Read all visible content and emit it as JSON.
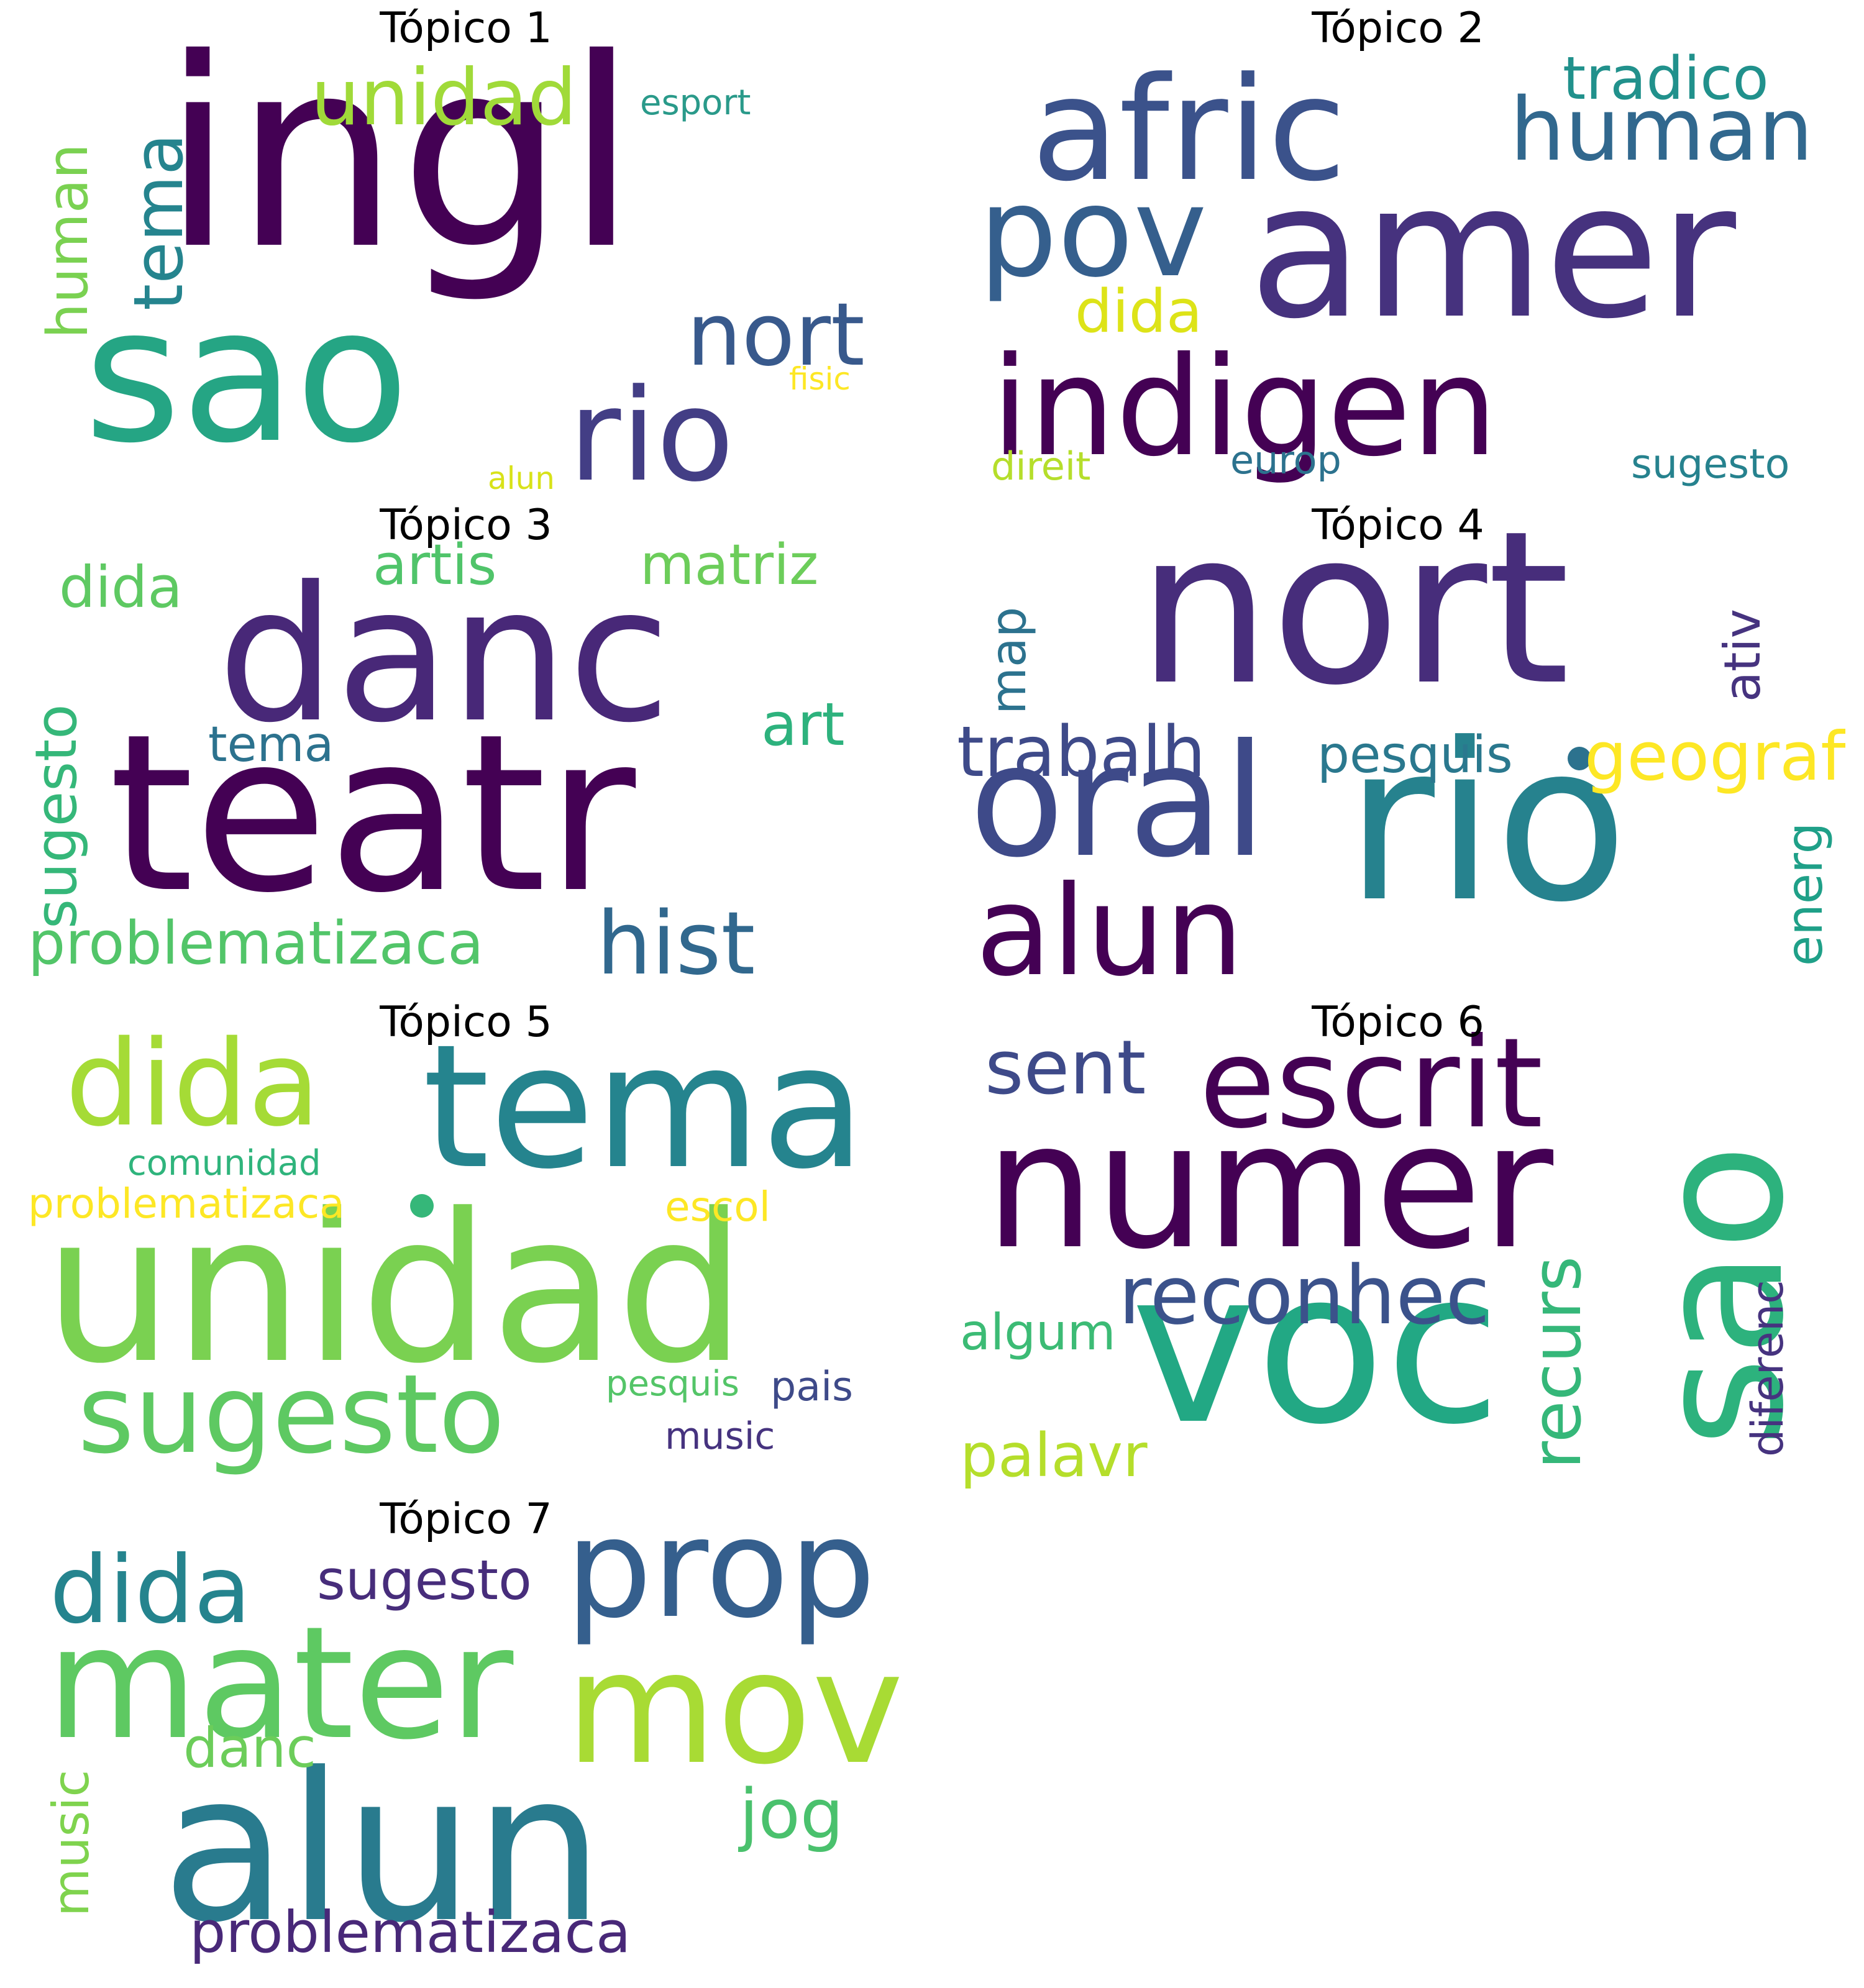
{
  "topics": [
    {
      "title": "Tópico 1",
      "words": {
        "ingl": "ingl",
        "sao": "sao",
        "rio": "rio",
        "nort": "nort",
        "unidad": "unidad",
        "tema": "tema",
        "human": "human",
        "esport": "esport",
        "fisic": "fisic",
        "alun": "alun"
      }
    },
    {
      "title": "Tópico 2",
      "words": {
        "afric": "afric",
        "amer": "amer",
        "pov": "pov",
        "indigen": "indigen",
        "human": "human",
        "tradico": "tradico",
        "dida": "dida",
        "direit": "direit",
        "europ": "europ",
        "sugesto": "sugesto"
      }
    },
    {
      "title": "Tópico 3",
      "words": {
        "teatr": "teatr",
        "danc": "danc",
        "hist": "hist",
        "problematizaca": "problematizaca",
        "sugesto": "sugesto",
        "dida": "dida",
        "artis": "artis",
        "matriz": "matriz",
        "art": "art",
        "tema": "tema"
      }
    },
    {
      "title": "Tópico 4",
      "words": {
        "nort": "nort",
        "rio": "rio",
        "oral": "oral",
        "alun": "alun",
        "trabalh": "trabalh",
        "pesquis": "pesquis",
        "geografi": "geografi",
        "map": "map",
        "ativ": "ativ",
        "energ": "energ"
      }
    },
    {
      "title": "Tópico 5",
      "words": {
        "unidad": "unidad",
        "tema": "tema",
        "dida": "dida",
        "sugesto": "sugesto",
        "comunidad": "comunidad",
        "problematizaca": "problematizaca",
        "escol": "escol",
        "pesquis": "pesquis",
        "pais": "pais",
        "music": "music"
      }
    },
    {
      "title": "Tópico 6",
      "words": {
        "numer": "numer",
        "voc": "voc",
        "sao": "sao",
        "escrit": "escrit",
        "sent": "sent",
        "reconhec": "reconhec",
        "recurs": "recurs",
        "algum": "algum",
        "palavr": "palavr",
        "diferenc": "diferenc"
      }
    },
    {
      "title": "Tópico 7",
      "words": {
        "alun": "alun",
        "mater": "mater",
        "mov": "mov",
        "prop": "prop",
        "dida": "dida",
        "sugesto": "sugesto",
        "danc": "danc",
        "jog": "jog",
        "music": "music",
        "problematizaca": "problematizaca"
      }
    }
  ]
}
